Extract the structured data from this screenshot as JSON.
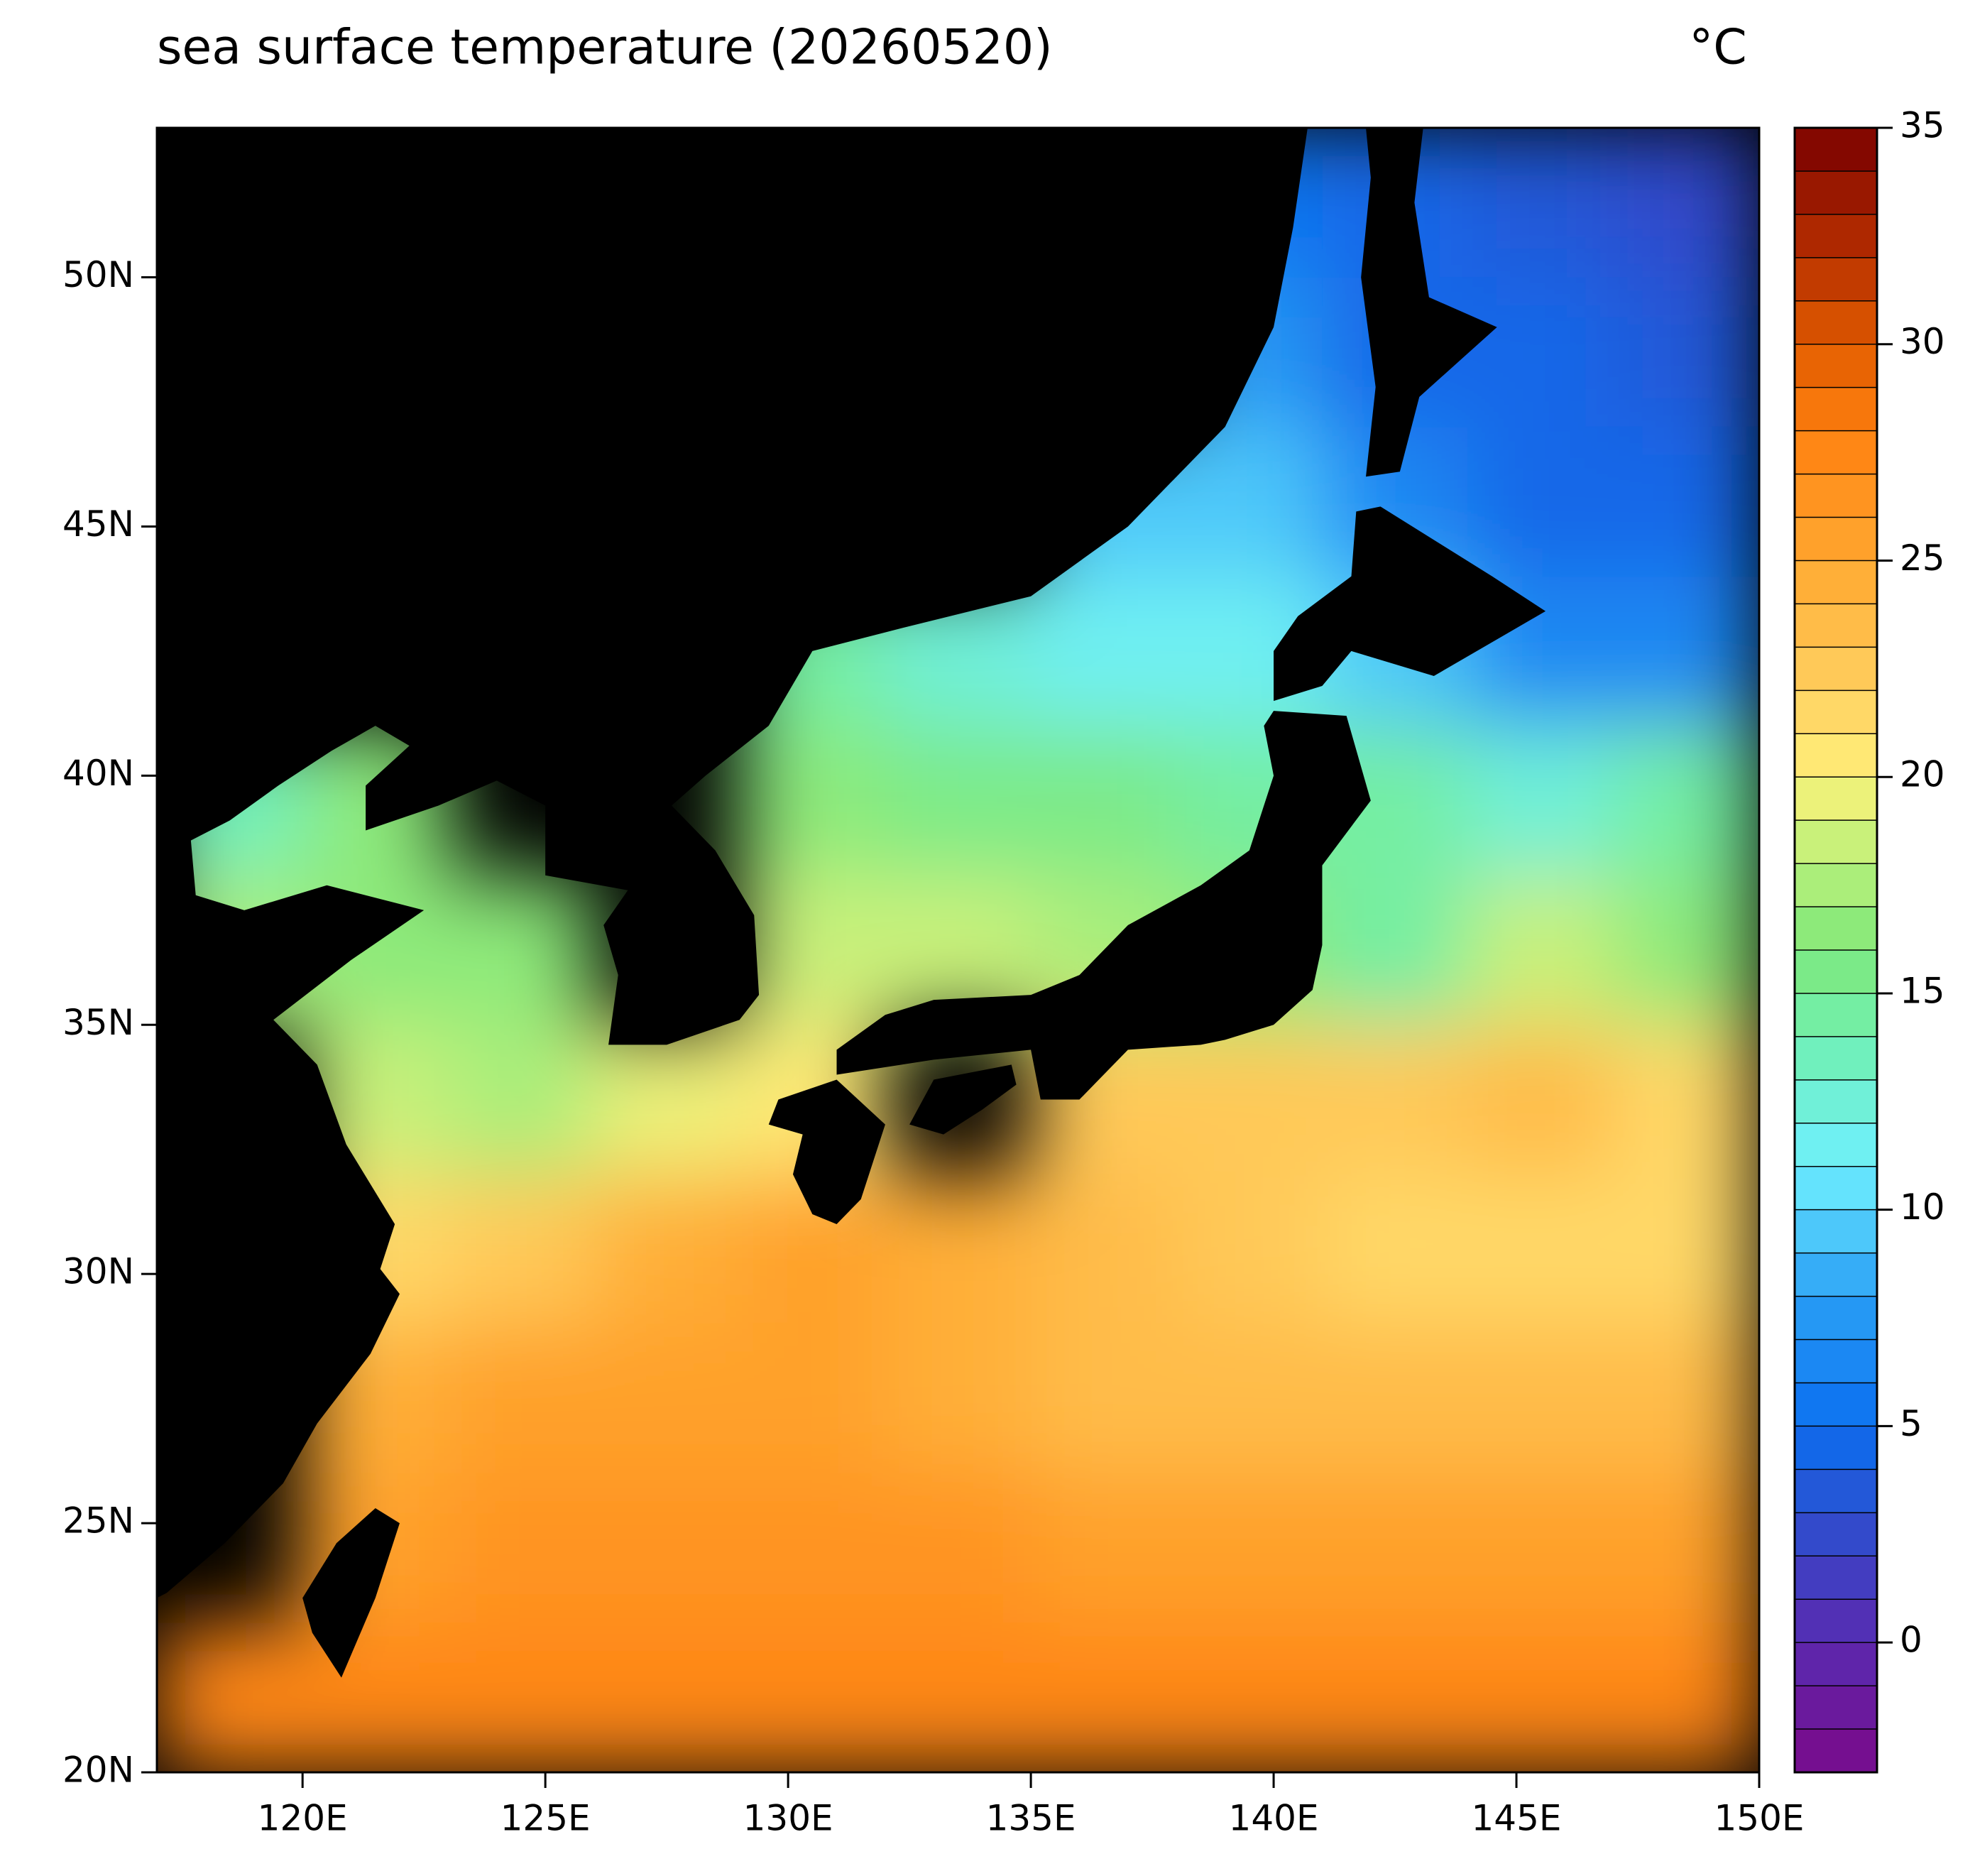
{
  "chart_data": {
    "type": "heatmap",
    "title": "sea surface temperature (20260520)",
    "unit": "°C",
    "xlim": [
      117,
      150
    ],
    "ylim": [
      20,
      53
    ],
    "xticks": [
      {
        "value": 120,
        "label": "120E"
      },
      {
        "value": 125,
        "label": "125E"
      },
      {
        "value": 130,
        "label": "130E"
      },
      {
        "value": 135,
        "label": "135E"
      },
      {
        "value": 140,
        "label": "140E"
      },
      {
        "value": 145,
        "label": "145E"
      },
      {
        "value": 150,
        "label": "150E"
      }
    ],
    "yticks": [
      {
        "value": 20,
        "label": "20N"
      },
      {
        "value": 25,
        "label": "25N"
      },
      {
        "value": 30,
        "label": "30N"
      },
      {
        "value": 35,
        "label": "35N"
      },
      {
        "value": 40,
        "label": "40N"
      },
      {
        "value": 45,
        "label": "45N"
      },
      {
        "value": 50,
        "label": "50N"
      }
    ],
    "x": [
      117,
      120,
      123,
      126,
      129,
      132,
      135,
      138,
      141,
      144,
      147,
      150
    ],
    "y": [
      53,
      50,
      47,
      44,
      41,
      38,
      35,
      32,
      29,
      26,
      23,
      20
    ],
    "values": [
      [
        null,
        null,
        null,
        null,
        null,
        null,
        null,
        5,
        4,
        3,
        2
      ],
      [
        null,
        null,
        null,
        null,
        null,
        null,
        null,
        7,
        4,
        4,
        3
      ],
      [
        null,
        null,
        null,
        null,
        null,
        null,
        9,
        9,
        6,
        4,
        4
      ],
      [
        null,
        null,
        null,
        null,
        14,
        12,
        11,
        11,
        9,
        6,
        6
      ],
      [
        13,
        16,
        null,
        null,
        16,
        15,
        15,
        14,
        14,
        12,
        14
      ],
      [
        17,
        16,
        16,
        null,
        18,
        18,
        17,
        16,
        14,
        18,
        16
      ],
      [
        null,
        18,
        17,
        19,
        20,
        null,
        22,
        22,
        22,
        23,
        21
      ],
      [
        null,
        21,
        22,
        24,
        25,
        24,
        23,
        22,
        21,
        21,
        21
      ],
      [
        null,
        24,
        25,
        25,
        25,
        24,
        23,
        23,
        23,
        23,
        23
      ],
      [
        null,
        25,
        26,
        26,
        26,
        26,
        25,
        25,
        25,
        25,
        25
      ],
      [
        27,
        27,
        27,
        27,
        27,
        27,
        27,
        27,
        27,
        27,
        27
      ]
    ],
    "colorbar": {
      "lim": [
        -3,
        35
      ],
      "ticks": [
        0,
        5,
        10,
        15,
        20,
        25,
        30,
        35
      ],
      "step": 1,
      "colormap": [
        {
          "value": -3,
          "color": "#7a0a8a"
        },
        {
          "value": 0,
          "color": "#5a2ab0"
        },
        {
          "value": 3,
          "color": "#2b50d0"
        },
        {
          "value": 5,
          "color": "#0b6ff0"
        },
        {
          "value": 8,
          "color": "#2aa0f5"
        },
        {
          "value": 11,
          "color": "#6ff0ff"
        },
        {
          "value": 14,
          "color": "#70f0b0"
        },
        {
          "value": 16,
          "color": "#7ee87a"
        },
        {
          "value": 19,
          "color": "#d8f37a"
        },
        {
          "value": 20,
          "color": "#fff07a"
        },
        {
          "value": 22,
          "color": "#ffd060"
        },
        {
          "value": 25,
          "color": "#ffa830"
        },
        {
          "value": 28,
          "color": "#ff8010"
        },
        {
          "value": 30,
          "color": "#e05a00"
        },
        {
          "value": 32,
          "color": "#b83000"
        },
        {
          "value": 35,
          "color": "#7a0000"
        }
      ]
    },
    "land_color": "#000000"
  }
}
